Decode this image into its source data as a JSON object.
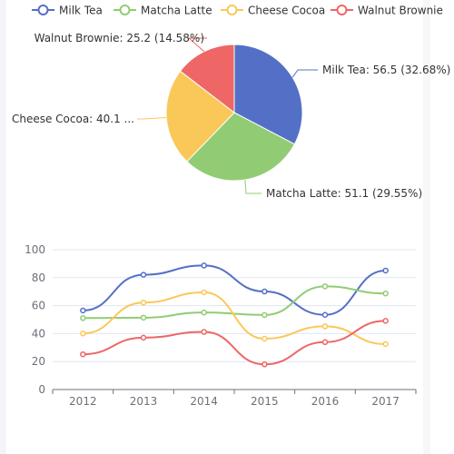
{
  "colors": [
    "#5470c6",
    "#91cc75",
    "#fac858",
    "#ee6666"
  ],
  "chart_data": [
    {
      "type": "pie",
      "legend": [
        "Milk Tea",
        "Matcha Latte",
        "Cheese Cocoa",
        "Walnut Brownie"
      ],
      "legend_position": "top",
      "slices": [
        {
          "name": "Milk Tea",
          "value": 56.5,
          "label": "Milk Tea: 56.5 (32.68%)"
        },
        {
          "name": "Matcha Latte",
          "value": 51.1,
          "label": "Matcha Latte: 51.1 (29.55%)"
        },
        {
          "name": "Cheese Cocoa",
          "value": 40.1,
          "label": "Cheese Cocoa: 40.1 ..."
        },
        {
          "name": "Walnut Brownie",
          "value": 25.2,
          "label": "Walnut Brownie: 25.2 (14.58%)"
        }
      ]
    },
    {
      "type": "line",
      "smooth": true,
      "x": [
        "2012",
        "2013",
        "2014",
        "2015",
        "2016",
        "2017"
      ],
      "ylim": [
        0,
        100
      ],
      "yticks": [
        "0",
        "20",
        "40",
        "60",
        "80",
        "100"
      ],
      "grid": true,
      "series": [
        {
          "name": "Milk Tea",
          "values": [
            56.5,
            82.1,
            88.7,
            70.1,
            53.4,
            85.1
          ]
        },
        {
          "name": "Matcha Latte",
          "values": [
            51.1,
            51.4,
            55.1,
            53.3,
            73.8,
            68.7
          ]
        },
        {
          "name": "Cheese Cocoa",
          "values": [
            40.1,
            62.2,
            69.5,
            36.4,
            45.2,
            32.5
          ]
        },
        {
          "name": "Walnut Brownie",
          "values": [
            25.2,
            37.1,
            41.2,
            18.0,
            33.9,
            49.1
          ]
        }
      ]
    }
  ]
}
